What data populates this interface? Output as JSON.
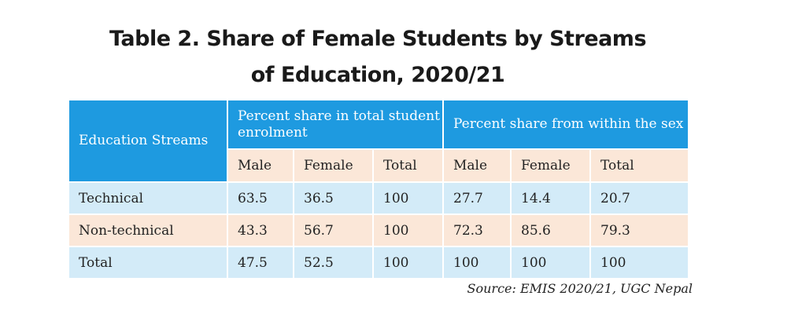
{
  "title_line1": "Table 2. Share of Female Students by Streams",
  "title_line2": "of Education, 2020/21",
  "source": "Source: EMIS 2020/21, UGC Nepal",
  "colors": {
    "header": "#1e9ae0",
    "row_blue": "#d3ebf8",
    "row_peach": "#fbe7d8"
  },
  "chart_data": {
    "type": "table",
    "title": "Table 2. Share of Female Students by Streams of Education, 2020/21",
    "row_header": "Education Streams",
    "group_headers": [
      "Percent share in total student enrolment",
      "Percent share from within the sex"
    ],
    "columns": [
      "Male",
      "Female",
      "Total",
      "Male",
      "Female",
      "Total"
    ],
    "rows": [
      {
        "label": "Technical",
        "values": [
          "63.5",
          "36.5",
          "100",
          "27.7",
          "14.4",
          "20.7"
        ]
      },
      {
        "label": "Non-technical",
        "values": [
          "43.3",
          "56.7",
          "100",
          "72.3",
          "85.6",
          "79.3"
        ]
      },
      {
        "label": "Total",
        "values": [
          "47.5",
          "52.5",
          "100",
          "100",
          "100",
          "100"
        ]
      }
    ]
  }
}
